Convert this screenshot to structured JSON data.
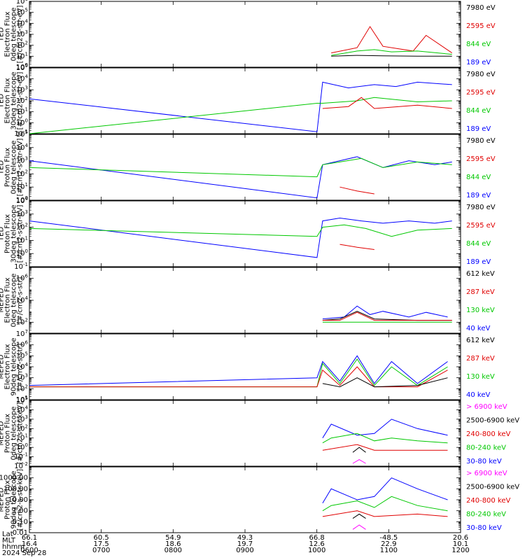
{
  "chart_data": [
    {
      "type": "line",
      "ylabel": [
        "TED",
        "Electron Flux",
        "0deg telescope",
        "[#/cm2-s-str-eV]"
      ],
      "ylim": [
        1,
        1000000
      ],
      "y_scale": "log",
      "y_ticks": [
        1,
        10,
        100,
        1000,
        10000,
        100000,
        1000000
      ],
      "y_tick_labels": [
        "10^0",
        "10^1",
        "10^2",
        "10^3",
        "10^4",
        "10^5",
        "10^6"
      ],
      "channels": [
        {
          "label": "7980 eV",
          "color": "#000000"
        },
        {
          "label": "2595 eV",
          "color": "#e00000"
        },
        {
          "label": "844 eV",
          "color": "#00c800"
        },
        {
          "label": "189 eV",
          "color": "#0000ff"
        }
      ],
      "series": [
        {
          "color": "#000000",
          "x": [
            0.7,
            0.76,
            0.82,
            0.9,
            0.98
          ],
          "values": [
            10,
            12,
            11,
            10,
            10
          ]
        },
        {
          "color": "#e00000",
          "x": [
            0.7,
            0.76,
            0.79,
            0.82,
            0.89,
            0.92,
            0.98
          ],
          "values": [
            20,
            60,
            5000,
            80,
            30,
            800,
            20
          ]
        },
        {
          "color": "#00c800",
          "x": [
            0.7,
            0.76,
            0.8,
            0.84,
            0.9,
            0.98
          ],
          "values": [
            12,
            30,
            40,
            25,
            30,
            15
          ]
        }
      ]
    },
    {
      "type": "line",
      "ylabel": [
        "TED",
        "Electron Flux",
        "30deg telescope",
        "[#/cm2-s-str-eV]"
      ],
      "ylim": [
        0.1,
        100000
      ],
      "y_scale": "log",
      "y_ticks": [
        0.1,
        1,
        10,
        100,
        1000,
        10000,
        100000
      ],
      "y_tick_labels": [
        "10^-1",
        "10^0",
        "10^1",
        "10^2",
        "10^3",
        "10^4",
        "10^5"
      ],
      "channels": [
        {
          "label": "7980 eV",
          "color": "#000000"
        },
        {
          "label": "2595 eV",
          "color": "#e00000"
        },
        {
          "label": "844 eV",
          "color": "#00c800"
        },
        {
          "label": "189 eV",
          "color": "#0000ff"
        }
      ],
      "series": [
        {
          "color": "#0000ff",
          "x": [
            0.0,
            0.667,
            0.68,
            0.74,
            0.8,
            0.85,
            0.9,
            0.98
          ],
          "values": [
            150,
            0.15,
            5000,
            1500,
            3000,
            2000,
            5000,
            3000
          ]
        },
        {
          "color": "#00c800",
          "x": [
            0.0,
            0.667,
            0.68,
            0.76,
            0.8,
            0.9,
            0.98
          ],
          "values": [
            0.1,
            60,
            60,
            100,
            200,
            80,
            100
          ]
        },
        {
          "color": "#e00000",
          "x": [
            0.68,
            0.74,
            0.77,
            0.8,
            0.9,
            0.98
          ],
          "values": [
            20,
            30,
            200,
            20,
            40,
            20
          ]
        }
      ]
    },
    {
      "type": "line",
      "ylabel": [
        "TED",
        "Proton Flux",
        "0deg telescope",
        "[#/cm2-s-str-eV]"
      ],
      "ylim": [
        1,
        100000
      ],
      "y_scale": "log",
      "y_ticks": [
        1,
        10,
        100,
        1000,
        10000,
        100000
      ],
      "y_tick_labels": [
        "10^0",
        "10^1",
        "10^2",
        "10^3",
        "10^4",
        "10^5"
      ],
      "channels": [
        {
          "label": "7980 eV",
          "color": "#000000"
        },
        {
          "label": "2595 eV",
          "color": "#e00000"
        },
        {
          "label": "844 eV",
          "color": "#00c800"
        },
        {
          "label": "189 eV",
          "color": "#0000ff"
        }
      ],
      "series": [
        {
          "color": "#0000ff",
          "x": [
            0.0,
            0.667,
            0.68,
            0.72,
            0.76,
            0.82,
            0.88,
            0.94,
            0.98
          ],
          "values": [
            1000,
            1.5,
            500,
            1000,
            2000,
            300,
            1000,
            500,
            800
          ]
        },
        {
          "color": "#00c800",
          "x": [
            0.0,
            0.667,
            0.68,
            0.72,
            0.77,
            0.82,
            0.9,
            0.98
          ],
          "values": [
            300,
            60,
            500,
            800,
            1500,
            300,
            800,
            500
          ]
        },
        {
          "color": "#e00000",
          "x": [
            0.72,
            0.76,
            0.8
          ],
          "values": [
            10,
            5,
            3
          ]
        }
      ]
    },
    {
      "type": "line",
      "ylabel": [
        "TED",
        "Proton Flux",
        "30deg telescope",
        "[#/cm2-s-str-eV]"
      ],
      "ylim": [
        0.1,
        10000
      ],
      "y_scale": "log",
      "y_ticks": [
        0.1,
        1,
        10,
        100,
        1000,
        10000
      ],
      "y_tick_labels": [
        "10^-1",
        "10^0",
        "10^1",
        "10^2",
        "10^3",
        "10^4"
      ],
      "channels": [
        {
          "label": "7980 eV",
          "color": "#000000"
        },
        {
          "label": "2595 eV",
          "color": "#e00000"
        },
        {
          "label": "844 eV",
          "color": "#00c800"
        },
        {
          "label": "189 eV",
          "color": "#0000ff"
        }
      ],
      "series": [
        {
          "color": "#0000ff",
          "x": [
            0.0,
            0.667,
            0.68,
            0.72,
            0.77,
            0.82,
            0.88,
            0.94,
            0.98
          ],
          "values": [
            300,
            0.5,
            300,
            500,
            300,
            200,
            300,
            200,
            300
          ]
        },
        {
          "color": "#00c800",
          "x": [
            0.0,
            0.667,
            0.68,
            0.73,
            0.78,
            0.84,
            0.9,
            0.98
          ],
          "values": [
            80,
            20,
            100,
            150,
            80,
            20,
            60,
            80
          ]
        },
        {
          "color": "#e00000",
          "x": [
            0.72,
            0.76,
            0.8
          ],
          "values": [
            5,
            3,
            2
          ]
        }
      ]
    },
    {
      "type": "line",
      "ylabel": [
        "MEPED",
        "Electron Flux",
        "0deg telescope",
        "[#/cm2-s-str]"
      ],
      "ylim": [
        10,
        10000000
      ],
      "y_scale": "log",
      "y_ticks": [
        100,
        10000,
        1000000
      ],
      "y_tick_labels": [
        "10^2",
        "10^4",
        "10^6"
      ],
      "channels": [
        {
          "label": "612 keV",
          "color": "#000000"
        },
        {
          "label": "287 keV",
          "color": "#e00000"
        },
        {
          "label": "130 keV",
          "color": "#00c800"
        },
        {
          "label": "40 keV",
          "color": "#0000ff"
        }
      ],
      "series": [
        {
          "color": "#0000ff",
          "x": [
            0.68,
            0.73,
            0.76,
            0.79,
            0.82,
            0.88,
            0.92,
            0.97
          ],
          "values": [
            200,
            300,
            3000,
            500,
            1000,
            300,
            800,
            300
          ]
        },
        {
          "color": "#000000",
          "x": [
            0.68,
            0.72,
            0.76,
            0.8,
            0.9,
            0.98
          ],
          "values": [
            150,
            200,
            1000,
            200,
            150,
            150
          ]
        },
        {
          "color": "#e00000",
          "x": [
            0.68,
            0.72,
            0.76,
            0.8,
            0.9,
            0.98
          ],
          "values": [
            150,
            150,
            800,
            150,
            150,
            150
          ]
        },
        {
          "color": "#00c800",
          "x": [
            0.68,
            0.98
          ],
          "values": [
            100,
            100
          ]
        }
      ]
    },
    {
      "type": "line",
      "ylabel": [
        "MEPED",
        "Electron Flux",
        "90deg telescope",
        "[#/cm2-s-str]"
      ],
      "ylim": [
        10,
        10000000
      ],
      "y_scale": "log",
      "y_ticks": [
        10,
        100,
        1000,
        10000,
        100000,
        1000000,
        10000000
      ],
      "y_tick_labels": [
        "10^1",
        "10^2",
        "10^3",
        "10^4",
        "10^5",
        "10^6",
        "10^7"
      ],
      "channels": [
        {
          "label": "612 keV",
          "color": "#000000"
        },
        {
          "label": "287 keV",
          "color": "#e00000"
        },
        {
          "label": "130 keV",
          "color": "#00c800"
        },
        {
          "label": "40 keV",
          "color": "#0000ff"
        }
      ],
      "series": [
        {
          "color": "#0000ff",
          "x": [
            0.0,
            0.667,
            0.68,
            0.72,
            0.76,
            0.8,
            0.84,
            0.9,
            0.97
          ],
          "values": [
            200,
            1000,
            30000,
            500,
            100000,
            300,
            30000,
            300,
            30000
          ]
        },
        {
          "color": "#00c800",
          "x": [
            0.0,
            0.667,
            0.68,
            0.72,
            0.76,
            0.8,
            0.84,
            0.9,
            0.97
          ],
          "values": [
            150,
            150,
            20000,
            300,
            50000,
            200,
            10000,
            200,
            10000
          ]
        },
        {
          "color": "#e00000",
          "x": [
            0.0,
            0.667,
            0.68,
            0.72,
            0.76,
            0.8,
            0.9,
            0.97
          ],
          "values": [
            150,
            150,
            5000,
            200,
            10000,
            150,
            150,
            5000
          ]
        },
        {
          "color": "#000000",
          "x": [
            0.68,
            0.72,
            0.76,
            0.8,
            0.9,
            0.97
          ],
          "values": [
            300,
            150,
            1000,
            150,
            200,
            1000
          ]
        }
      ]
    },
    {
      "type": "line",
      "ylabel": [
        "MEPED",
        "Proton Flux",
        "0deg telescope",
        "[#/cm2-s-str-keV]"
      ],
      "ylim": [
        0.01,
        100000
      ],
      "y_scale": "log",
      "y_ticks": [
        0.01,
        0.1,
        1,
        10,
        100,
        1000,
        10000,
        100000
      ],
      "y_tick_labels": [
        "10^-2",
        "10^-1",
        "10^0",
        "10^1",
        "10^2",
        "10^3",
        "10^4",
        "10^5"
      ],
      "channels": [
        {
          "label": "> 6900 keV",
          "color": "#ff00ff"
        },
        {
          "label": "2500-6900 keV",
          "color": "#000000"
        },
        {
          "label": "240-800 keV",
          "color": "#e00000"
        },
        {
          "label": "80-240 keV",
          "color": "#00c800"
        },
        {
          "label": "30-80 keV",
          "color": "#0000ff"
        }
      ],
      "series": [
        {
          "color": "#0000ff",
          "x": [
            0.68,
            0.7,
            0.76,
            0.8,
            0.84,
            0.9,
            0.97
          ],
          "values": [
            10,
            300,
            20,
            30,
            1000,
            100,
            20
          ]
        },
        {
          "color": "#00c800",
          "x": [
            0.68,
            0.7,
            0.76,
            0.8,
            0.84,
            0.9,
            0.97
          ],
          "values": [
            3,
            10,
            30,
            5,
            10,
            5,
            3
          ]
        },
        {
          "color": "#e00000",
          "x": [
            0.68,
            0.76,
            0.8,
            0.9,
            0.97
          ],
          "values": [
            0.5,
            2,
            0.5,
            0.5,
            0.5
          ]
        },
        {
          "color": "#000000",
          "x": [
            0.75,
            0.765,
            0.78
          ],
          "values": [
            0.3,
            1,
            0.3
          ]
        },
        {
          "color": "#ff00ff",
          "x": [
            0.75,
            0.765,
            0.78
          ],
          "values": [
            0.02,
            0.05,
            0.02
          ]
        }
      ]
    },
    {
      "type": "line",
      "ylabel": [
        "MEPED",
        "Proton Flux",
        "90deg telescope",
        "[#/cm2-s-str-keV]"
      ],
      "ylim": [
        0.01,
        10000
      ],
      "y_scale": "log",
      "y_ticks": [
        0.01,
        0.1,
        1,
        10,
        100,
        1000
      ],
      "y_tick_labels": [
        "0.01",
        "0.10",
        "1.00",
        "10.00",
        "100.00",
        "1000.00"
      ],
      "channels": [
        {
          "label": "> 6900 keV",
          "color": "#ff00ff"
        },
        {
          "label": "2500-6900 keV",
          "color": "#000000"
        },
        {
          "label": "240-800 keV",
          "color": "#e00000"
        },
        {
          "label": "80-240 keV",
          "color": "#00c800"
        },
        {
          "label": "30-80 keV",
          "color": "#0000ff"
        }
      ],
      "series": [
        {
          "color": "#0000ff",
          "x": [
            0.68,
            0.7,
            0.76,
            0.8,
            0.84,
            0.9,
            0.97
          ],
          "values": [
            5,
            100,
            10,
            20,
            1000,
            100,
            10
          ]
        },
        {
          "color": "#00c800",
          "x": [
            0.68,
            0.7,
            0.76,
            0.8,
            0.84,
            0.9,
            0.97
          ],
          "values": [
            1,
            3,
            8,
            2,
            20,
            3,
            1
          ]
        },
        {
          "color": "#e00000",
          "x": [
            0.68,
            0.76,
            0.8,
            0.9,
            0.97
          ],
          "values": [
            0.3,
            1,
            0.3,
            0.5,
            0.3
          ]
        },
        {
          "color": "#000000",
          "x": [
            0.75,
            0.765,
            0.78
          ],
          "values": [
            0.2,
            0.5,
            0.2
          ]
        },
        {
          "color": "#ff00ff",
          "x": [
            0.75,
            0.765,
            0.78
          ],
          "values": [
            0.02,
            0.05,
            0.02
          ]
        }
      ]
    }
  ],
  "xaxis": {
    "row_labels": [
      "Lat",
      "MLT",
      "hhmm"
    ],
    "columns": [
      {
        "lat": "66.1",
        "mlt": "16.4",
        "hhmm": "0600"
      },
      {
        "lat": "60.5",
        "mlt": "17.5",
        "hhmm": "0700"
      },
      {
        "lat": "54.9",
        "mlt": "18.6",
        "hhmm": "0800"
      },
      {
        "lat": "49.3",
        "mlt": "19.7",
        "hhmm": "0900"
      },
      {
        "lat": "66.8",
        "mlt": "12.6",
        "hhmm": "1000"
      },
      {
        "lat": "-48.5",
        "mlt": "22.9",
        "hhmm": "1100"
      },
      {
        "lat": "20.6",
        "mlt": "10.1",
        "hhmm": "1200"
      }
    ],
    "date": "2024 Sep 28"
  }
}
